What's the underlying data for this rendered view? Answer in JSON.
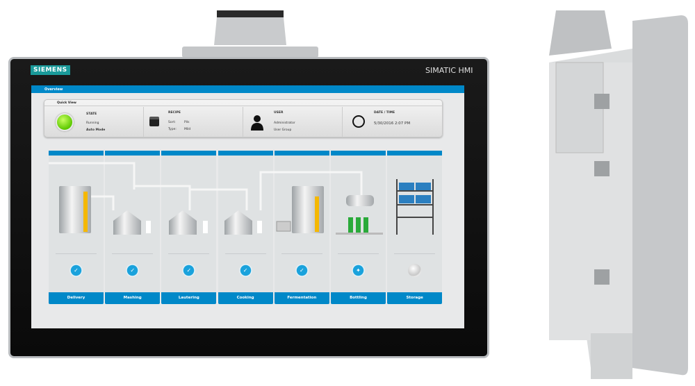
{
  "device": {
    "logo": "SIEMENS",
    "brand": "SIMATIC HMI"
  },
  "topbar": {
    "title": "Overview"
  },
  "quick_view": {
    "title": "Quick View",
    "state": {
      "label": "STATE",
      "value": "Running",
      "mode": "Auto Mode",
      "color": "#7ed321"
    },
    "recipe": {
      "label": "RECIPE",
      "sort_label": "Sort:",
      "sort": "Pils",
      "type_label": "Type:",
      "type": "Mild"
    },
    "user": {
      "label": "USER",
      "name": "Administrator",
      "group": "User Group"
    },
    "datetime": {
      "label": "DATE / TIME",
      "value": "5/30/2016 2:07 PM"
    }
  },
  "stages": [
    {
      "label": "Delivery",
      "status": "done"
    },
    {
      "label": "Mashing",
      "status": "done"
    },
    {
      "label": "Lautering",
      "status": "done"
    },
    {
      "label": "Cooking",
      "status": "done"
    },
    {
      "label": "Fermentation",
      "status": "done"
    },
    {
      "label": "Bottling",
      "status": "in-progress"
    },
    {
      "label": "Storage",
      "status": "idle"
    }
  ],
  "colors": {
    "accent": "#0088c8",
    "level": "#f5b800"
  }
}
